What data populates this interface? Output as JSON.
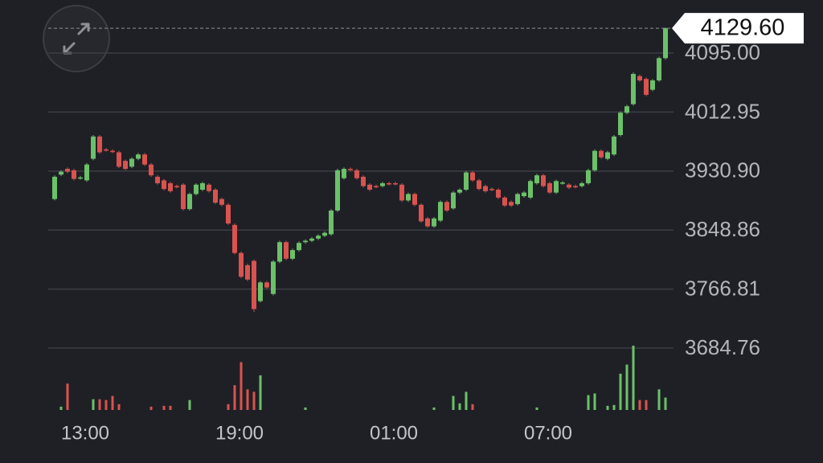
{
  "chart_data": {
    "type": "candlestick",
    "categories": [
      null,
      null,
      null,
      null,
      null,
      "13:00",
      null,
      null,
      null,
      null,
      null,
      null,
      null,
      null,
      null,
      null,
      null,
      null,
      null,
      null,
      null,
      null,
      null,
      null,
      null,
      null,
      null,
      null,
      null,
      "19:00",
      null,
      null,
      null,
      null,
      null,
      null,
      null,
      null,
      null,
      null,
      null,
      null,
      null,
      null,
      null,
      null,
      null,
      null,
      null,
      null,
      null,
      null,
      null,
      "01:00",
      null,
      null,
      null,
      null,
      null,
      null,
      null,
      null,
      null,
      null,
      null,
      null,
      null,
      null,
      null,
      null,
      null,
      null,
      null,
      null,
      null,
      null,
      null,
      "07:00",
      null,
      null,
      null,
      null,
      null,
      null,
      null,
      null,
      null,
      null,
      null,
      null,
      null,
      null,
      null,
      null,
      null,
      null
    ],
    "open": [
      3892,
      3926,
      3934,
      3932,
      3921,
      3918,
      3948,
      3979,
      3961,
      3959,
      3957,
      3945,
      3937,
      3948,
      3954,
      3940,
      3923,
      3918,
      3914,
      3910,
      3912,
      3878,
      3899,
      3905,
      3912,
      3905,
      3892,
      3884,
      3856,
      3817,
      3800,
      3806,
      3750,
      3776,
      3760,
      3805,
      3832,
      3809,
      3821,
      3832,
      3834,
      3837,
      3841,
      3843,
      3876,
      3921,
      3934,
      3932,
      3923,
      3912,
      3910,
      3910,
      3914,
      3914,
      3912,
      3890,
      3899,
      3884,
      3865,
      3854,
      3862,
      3888,
      3879,
      3901,
      3905,
      3929,
      3918,
      3910,
      3906,
      3905,
      3894,
      3888,
      3885,
      3896,
      3894,
      3914,
      3925,
      3914,
      3901,
      3914,
      3912,
      3910,
      3910,
      3914,
      3932,
      3959,
      3948,
      3954,
      3981,
      4012,
      4024,
      4063,
      4059,
      4044,
      4057,
      4088
    ],
    "high": [
      3925,
      3932,
      3936,
      3934,
      3924,
      3942,
      3981,
      3981,
      3963,
      3961,
      3959,
      3947,
      3950,
      3956,
      3956,
      3942,
      3925,
      3920,
      3916,
      3912,
      3914,
      3901,
      3914,
      3916,
      3914,
      3907,
      3894,
      3886,
      3858,
      3819,
      3802,
      3808,
      3778,
      3778,
      3807,
      3834,
      3834,
      3823,
      3833,
      3836,
      3839,
      3843,
      3847,
      3878,
      3934,
      3936,
      3936,
      3934,
      3925,
      3914,
      3912,
      3916,
      3916,
      3916,
      3914,
      3901,
      3901,
      3886,
      3867,
      3867,
      3890,
      3890,
      3903,
      3907,
      3931,
      3931,
      3920,
      3912,
      3908,
      3907,
      3896,
      3890,
      3901,
      3903,
      3919,
      3927,
      3927,
      3916,
      3919,
      3917,
      3914,
      3912,
      3916,
      3934,
      3961,
      3961,
      3959,
      3981,
      4014,
      4023,
      4068,
      4065,
      4061,
      4059,
      4090,
      4130.5
    ],
    "low": [
      3890,
      3924,
      3928,
      3918,
      3919,
      3916,
      3946,
      3955,
      3958,
      3956,
      3935,
      3932,
      3935,
      3946,
      3938,
      3923,
      3912,
      3904,
      3901,
      3907,
      3876,
      3876,
      3897,
      3903,
      3901,
      3885,
      3882,
      3856,
      3815,
      3782,
      3778,
      3735,
      3748,
      3767,
      3758,
      3803,
      3807,
      3807,
      3819,
      3830,
      3832,
      3835,
      3839,
      3841,
      3874,
      3919,
      3931,
      3919,
      3908,
      3903,
      3907,
      3908,
      3911,
      3911,
      3888,
      3888,
      3882,
      3859,
      3852,
      3852,
      3860,
      3874,
      3877,
      3899,
      3903,
      3916,
      3904,
      3901,
      3903,
      3892,
      3881,
      3881,
      3883,
      3894,
      3892,
      3912,
      3908,
      3899,
      3899,
      3912,
      3906,
      3907,
      3908,
      3912,
      3930,
      3948,
      3946,
      3952,
      3979,
      4010,
      4022,
      4055,
      4035,
      4042,
      4055,
      4086
    ],
    "close": [
      3923,
      3930,
      3930,
      3920,
      3922,
      3940,
      3979,
      3957,
      3960,
      3958,
      3937,
      3934,
      3948,
      3954,
      3940,
      3925,
      3914,
      3906,
      3903,
      3909,
      3878,
      3899,
      3912,
      3914,
      3903,
      3887,
      3884,
      3858,
      3817,
      3784,
      3780,
      3739,
      3776,
      3769,
      3805,
      3832,
      3809,
      3821,
      3831,
      3834,
      3837,
      3841,
      3845,
      3876,
      3932,
      3934,
      3933,
      3921,
      3910,
      3905,
      3909,
      3914,
      3913,
      3913,
      3890,
      3899,
      3884,
      3861,
      3854,
      3865,
      3888,
      3876,
      3901,
      3905,
      3929,
      3918,
      3906,
      3903,
      3905,
      3894,
      3883,
      3883,
      3899,
      3901,
      3917,
      3925,
      3910,
      3901,
      3917,
      3915,
      3908,
      3909,
      3914,
      3932,
      3959,
      3950,
      3957,
      3979,
      4012,
      4021,
      4066,
      4057,
      4037,
      4057,
      4088,
      4129.6
    ],
    "volume": [
      0,
      4,
      32,
      0,
      0,
      0,
      13,
      13,
      12,
      17,
      7,
      0,
      0,
      0,
      0,
      4,
      0,
      5,
      5,
      0,
      0,
      12,
      0,
      0,
      0,
      0,
      0,
      7,
      30,
      58,
      25,
      22,
      42,
      0,
      0,
      0,
      0,
      0,
      0,
      3,
      0,
      0,
      0,
      0,
      0,
      0,
      0,
      0,
      0,
      0,
      0,
      0,
      0,
      0,
      0,
      0,
      0,
      0,
      0,
      3,
      0,
      0,
      17,
      8,
      22,
      7,
      0,
      0,
      0,
      0,
      0,
      0,
      0,
      0,
      0,
      3,
      0,
      0,
      0,
      0,
      0,
      0,
      0,
      18,
      20,
      0,
      5,
      6,
      44,
      55,
      78,
      12,
      12,
      0,
      25,
      15
    ],
    "up_color": "#6cc06a",
    "down_color": "#d9534f",
    "ylim": [
      3684.76,
      4136.4
    ],
    "yticks": [
      3684.76,
      3766.81,
      3848.86,
      {
        "value": 3930.9,
        "label": "3930.90"
      },
      4012.95,
      {
        "value": 4095,
        "label": "4095.00"
      }
    ],
    "grid": true,
    "last_price": {
      "value": 4129.6,
      "label": "4129.60"
    }
  }
}
